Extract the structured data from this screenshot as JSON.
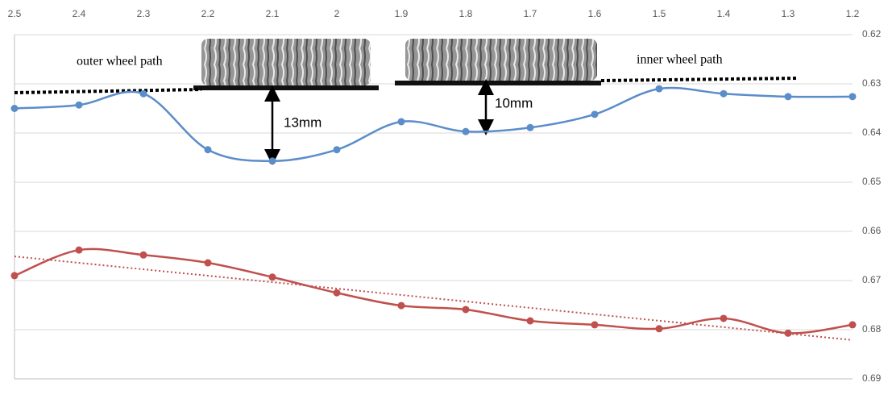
{
  "chart_data": {
    "type": "line",
    "x": [
      2.5,
      2.4,
      2.3,
      2.2,
      2.1,
      2,
      1.9,
      1.8,
      1.7,
      1.6,
      1.5,
      1.4,
      1.3,
      1.2
    ],
    "xlim": [
      2.5,
      1.2
    ],
    "xticks": [
      2.5,
      2.4,
      2.3,
      2.2,
      2.1,
      2,
      1.9,
      1.8,
      1.7,
      1.6,
      1.5,
      1.4,
      1.3,
      1.2
    ],
    "ylim": [
      0.62,
      0.69
    ],
    "yticks": [
      0.62,
      0.63,
      0.64,
      0.65,
      0.66,
      0.67,
      0.68,
      0.69
    ],
    "grid": true,
    "series": [
      {
        "color": "#5b8dc9",
        "values": [
          0.635,
          0.6343,
          0.632,
          0.6434,
          0.6457,
          0.6434,
          0.6377,
          0.6397,
          0.6389,
          0.6362,
          0.631,
          0.632,
          0.6326,
          0.6326
        ]
      },
      {
        "color": "#c0504d",
        "values": [
          0.669,
          0.6638,
          0.6648,
          0.6664,
          0.6693,
          0.6725,
          0.6751,
          0.6759,
          0.6782,
          0.679,
          0.6798,
          0.6777,
          0.6807,
          0.679
        ]
      }
    ],
    "trendline": {
      "color": "#c0504d",
      "x": [
        2.5,
        1.2
      ],
      "values": [
        0.6651,
        0.6821
      ]
    },
    "annotations": [
      "outer wheel path",
      "inner wheel path",
      "13mm",
      "10mm"
    ]
  }
}
